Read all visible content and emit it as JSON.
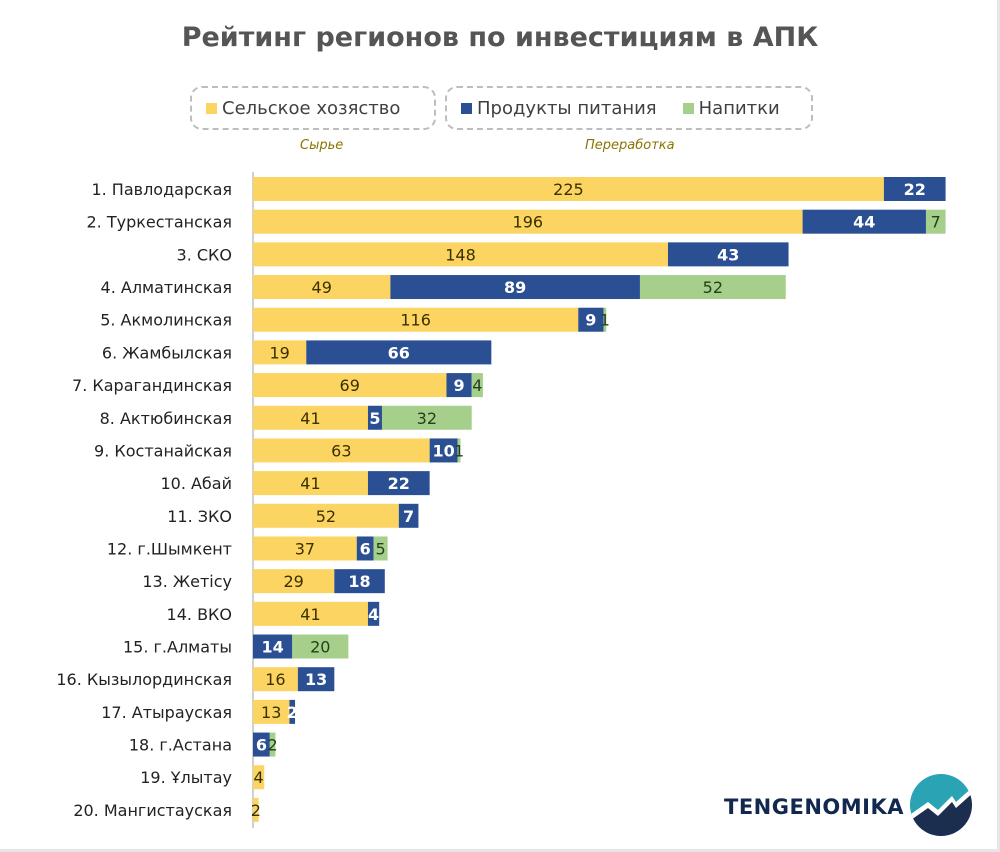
{
  "chart_data": {
    "type": "bar",
    "orientation": "horizontal",
    "stacked": true,
    "title": "Рейтинг регионов по инвестициям в АПК",
    "categories": [
      "1. Павлодарская",
      "2. Туркестанская",
      "3. СКО",
      "4. Алматинская",
      "5. Акмолинская",
      "6. Жамбылская",
      "7. Карагандинская",
      "8. Актюбинская",
      "9. Костанайская",
      "10. Абай",
      "11. ЗКО",
      "12. г.Шымкент",
      "13. Жетісу",
      "14. ВКО",
      "15. г.Алматы",
      "16. Кызылординская",
      "17. Атырауская",
      "18. г.Астана",
      "19. Ұлытау",
      "20. Мангистауская"
    ],
    "series": [
      {
        "name": "Сельское хозяство",
        "color": "#fcd462",
        "values": [
          225,
          196,
          148,
          49,
          116,
          19,
          69,
          41,
          63,
          41,
          52,
          37,
          29,
          41,
          0,
          16,
          13,
          0,
          4,
          2
        ]
      },
      {
        "name": "Продукты питания",
        "color": "#2b4f93",
        "values": [
          22,
          44,
          43,
          89,
          9,
          66,
          9,
          5,
          10,
          22,
          7,
          6,
          18,
          4,
          14,
          13,
          2,
          6,
          0,
          0
        ]
      },
      {
        "name": "Напитки",
        "color": "#a5cf8a",
        "values": [
          0,
          7,
          0,
          52,
          1,
          0,
          4,
          32,
          1,
          0,
          0,
          5,
          0,
          0,
          20,
          0,
          0,
          2,
          0,
          0
        ]
      }
    ],
    "legend_groups": [
      {
        "label": "Сырье",
        "series": [
          0
        ]
      },
      {
        "label": "Переработка",
        "series": [
          1,
          2
        ]
      }
    ],
    "legend_placement": "top",
    "grid": false,
    "data_labels": true
  },
  "brand": {
    "name": "TENGENOMIKA"
  }
}
